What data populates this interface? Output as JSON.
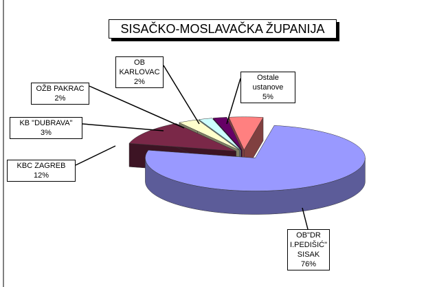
{
  "chart_data": {
    "type": "pie3d",
    "title": "SISAČKO-MOSLAVAČKA ŽUPANIJA",
    "categories": [
      "OB\"DR I.PEDIŠIĆ\" SISAK",
      "KBC ZAGREB",
      "KB \"DUBRAVA\"",
      "OŽB PAKRAC",
      "OB KARLOVAC",
      "Ostale ustanove"
    ],
    "values": [
      76,
      12,
      3,
      2,
      2,
      5
    ],
    "value_labels": [
      "76%",
      "12%",
      "3%",
      "2%",
      "2%",
      "5%"
    ],
    "colors": [
      "#9999ff",
      "#7a2848",
      "#ffffcc",
      "#ccffff",
      "#660066",
      "#ff8080"
    ]
  }
}
